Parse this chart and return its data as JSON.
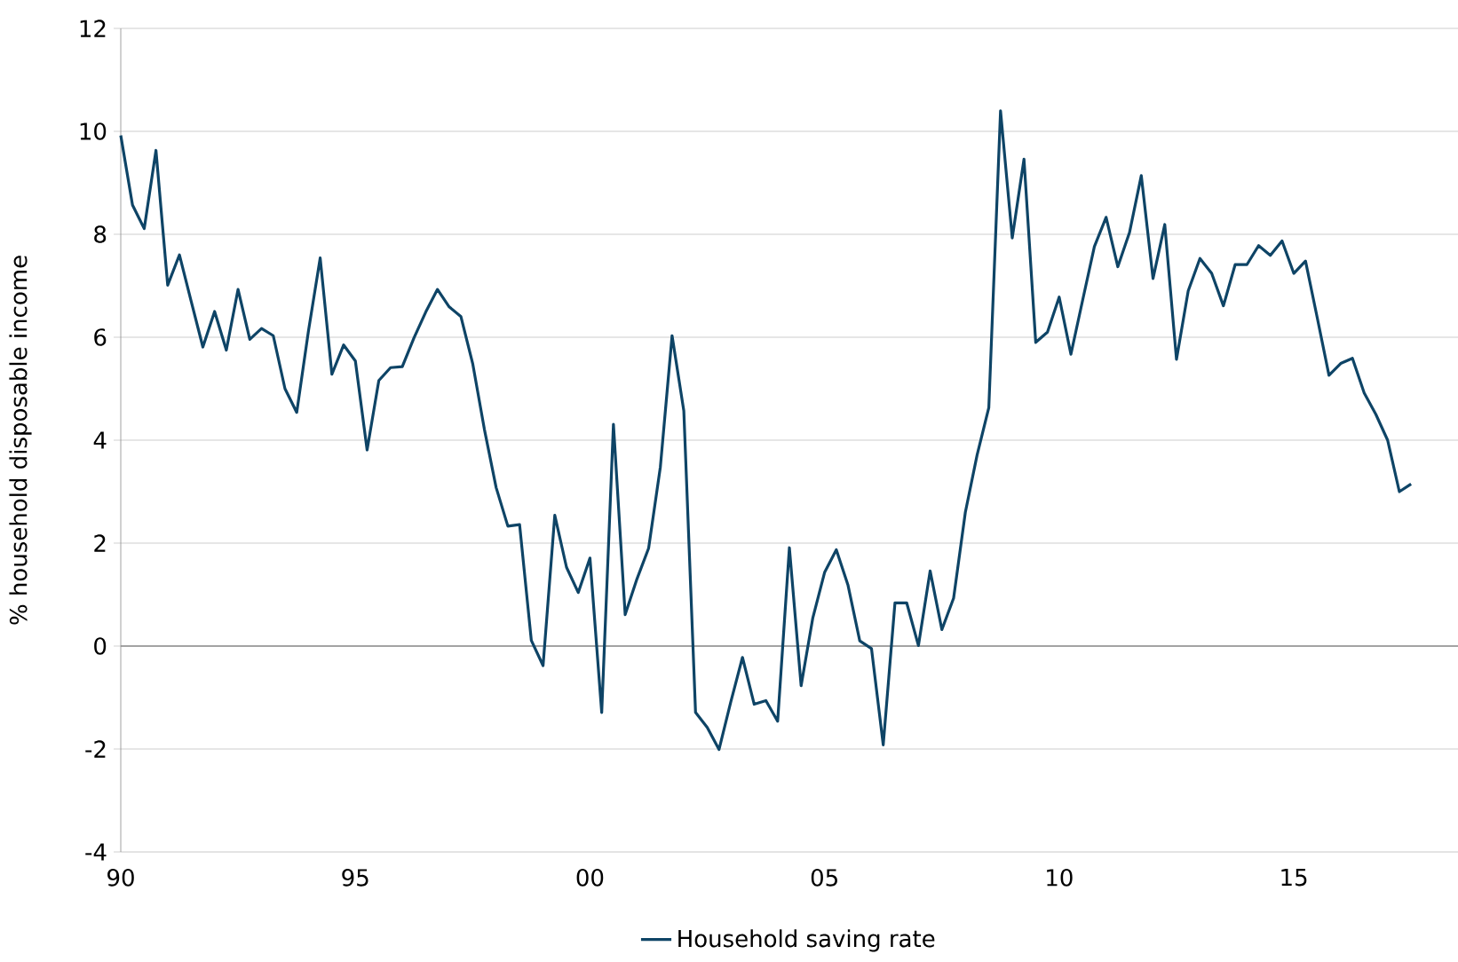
{
  "chart_data": {
    "type": "line",
    "ylabel": "% household disposable income",
    "x": [
      1990,
      1990.25,
      1990.5,
      1990.75,
      1991,
      1991.25,
      1991.5,
      1991.75,
      1992,
      1992.25,
      1992.5,
      1992.75,
      1993,
      1993.25,
      1993.5,
      1993.75,
      1994,
      1994.25,
      1994.5,
      1994.75,
      1995,
      1995.25,
      1995.5,
      1995.75,
      1996,
      1996.25,
      1996.5,
      1996.75,
      1997,
      1997.25,
      1997.5,
      1997.75,
      1998,
      1998.25,
      1998.5,
      1998.75,
      1999,
      1999.25,
      1999.5,
      1999.75,
      2000,
      2000.25,
      2000.5,
      2000.75,
      2001,
      2001.25,
      2001.5,
      2001.75,
      2002,
      2002.25,
      2002.5,
      2002.75,
      2003,
      2003.25,
      2003.5,
      2003.75,
      2004,
      2004.25,
      2004.5,
      2004.75,
      2005,
      2005.25,
      2005.5,
      2005.75,
      2006,
      2006.25,
      2006.5,
      2006.75,
      2007,
      2007.25,
      2007.5,
      2007.75,
      2008,
      2008.25,
      2008.5,
      2008.75,
      2009,
      2009.25,
      2009.5,
      2009.75,
      2010,
      2010.25,
      2010.5,
      2010.75,
      2011,
      2011.25,
      2011.5,
      2011.75,
      2012,
      2012.25,
      2012.5,
      2012.75,
      2013,
      2013.25,
      2013.5,
      2013.75,
      2014,
      2014.25,
      2014.5,
      2014.75,
      2015,
      2015.25,
      2015.5,
      2015.75,
      2016,
      2016.25,
      2016.5,
      2016.75,
      2017,
      2017.25,
      2017.5
    ],
    "series": [
      {
        "name": "Household saving rate",
        "color": "#0e4466",
        "values": [
          9.92,
          8.57,
          8.11,
          9.63,
          7.01,
          7.6,
          6.7,
          5.81,
          6.5,
          5.75,
          6.93,
          5.96,
          6.17,
          6.03,
          5.0,
          4.54,
          6.12,
          7.54,
          5.28,
          5.85,
          5.54,
          3.81,
          5.16,
          5.41,
          5.43,
          5.99,
          6.49,
          6.93,
          6.59,
          6.4,
          5.49,
          4.21,
          3.08,
          2.33,
          2.36,
          0.11,
          -0.38,
          2.54,
          1.53,
          1.04,
          1.71,
          -1.29,
          4.31,
          0.61,
          1.3,
          1.9,
          3.48,
          6.03,
          4.57,
          -1.29,
          -1.58,
          -2.01,
          -1.09,
          -0.22,
          -1.13,
          -1.06,
          -1.46,
          1.91,
          -0.77,
          0.55,
          1.43,
          1.87,
          1.18,
          0.1,
          -0.05,
          -1.92,
          0.84,
          0.84,
          0.01,
          1.46,
          0.32,
          0.93,
          2.6,
          3.71,
          4.63,
          10.4,
          7.93,
          9.46,
          5.9,
          6.1,
          6.78,
          5.67,
          6.72,
          7.76,
          8.33,
          7.37,
          8.04,
          9.14,
          7.14,
          8.19,
          5.57,
          6.9,
          7.53,
          7.24,
          6.61,
          7.41,
          7.41,
          7.78,
          7.59,
          7.87,
          7.24,
          7.48,
          6.38,
          5.26,
          5.49,
          5.59,
          4.92,
          4.5,
          4.0,
          3.0,
          3.15
        ]
      }
    ],
    "xlim": [
      1990,
      2018.5
    ],
    "xticks": [
      {
        "value": 1990,
        "label": "90"
      },
      {
        "value": 1995,
        "label": "95"
      },
      {
        "value": 2000,
        "label": "00"
      },
      {
        "value": 2005,
        "label": "05"
      },
      {
        "value": 2010,
        "label": "10"
      },
      {
        "value": 2015,
        "label": "15"
      }
    ],
    "ylim": [
      -4,
      12
    ],
    "yticks": [
      -4,
      -2,
      0,
      2,
      4,
      6,
      8,
      10,
      12
    ],
    "grid": "y",
    "legend": "bottom"
  }
}
